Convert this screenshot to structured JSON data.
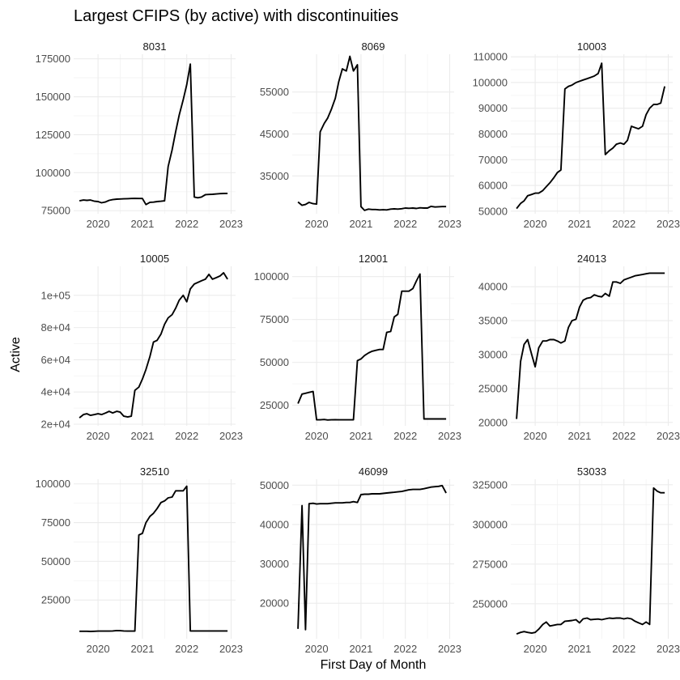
{
  "figure": {
    "title": "Largest CFIPS (by active) with discontinuities",
    "xlabel": "First Day of Month",
    "ylabel": "Active"
  },
  "chart_data": [
    {
      "type": "line",
      "panel": "8031",
      "xlim": [
        2019.45,
        2023.1
      ],
      "ylim": [
        73000,
        178000
      ],
      "yticks": [
        75000,
        100000,
        125000,
        150000,
        175000
      ],
      "ytick_labels": [
        "75000",
        "100000",
        "125000",
        "150000",
        "175000"
      ],
      "xticks": [
        2020,
        2021,
        2022,
        2023
      ],
      "xtick_labels": [
        "2020",
        "2021",
        "2022",
        "2023"
      ],
      "x": [
        2019.58,
        2019.67,
        2019.75,
        2019.83,
        2019.92,
        2020.0,
        2020.08,
        2020.17,
        2020.25,
        2020.33,
        2020.42,
        2020.5,
        2020.58,
        2020.67,
        2020.75,
        2020.83,
        2020.92,
        2021.0,
        2021.08,
        2021.17,
        2021.25,
        2021.33,
        2021.42,
        2021.5,
        2021.58,
        2021.67,
        2021.75,
        2021.83,
        2021.92,
        2022.0,
        2022.08,
        2022.17,
        2022.25,
        2022.33,
        2022.42,
        2022.5,
        2022.58,
        2022.67,
        2022.75,
        2022.83,
        2022.92
      ],
      "y": [
        81500,
        82000,
        81800,
        82000,
        81200,
        81000,
        80200,
        80800,
        81800,
        82300,
        82600,
        82700,
        82800,
        82900,
        83000,
        83100,
        83000,
        83000,
        79000,
        80500,
        80600,
        81000,
        81200,
        81500,
        104000,
        115000,
        127000,
        138000,
        148000,
        158000,
        171500,
        84000,
        83500,
        84000,
        85500,
        85700,
        85800,
        86000,
        86200,
        86300,
        86400
      ]
    },
    {
      "type": "line",
      "panel": "8069",
      "xlim": [
        2019.45,
        2023.1
      ],
      "ylim": [
        26000,
        64000
      ],
      "yticks": [
        35000,
        45000,
        55000
      ],
      "ytick_labels": [
        "35000",
        "45000",
        "55000"
      ],
      "xticks": [
        2020,
        2021,
        2022,
        2023
      ],
      "xtick_labels": [
        "2020",
        "2021",
        "2022",
        "2023"
      ],
      "x": [
        2019.58,
        2019.67,
        2019.75,
        2019.83,
        2019.92,
        2020.0,
        2020.08,
        2020.17,
        2020.25,
        2020.33,
        2020.42,
        2020.5,
        2020.58,
        2020.67,
        2020.75,
        2020.83,
        2020.92,
        2021.0,
        2021.08,
        2021.17,
        2021.25,
        2021.33,
        2021.42,
        2021.5,
        2021.58,
        2021.67,
        2021.75,
        2021.83,
        2021.92,
        2022.0,
        2022.08,
        2022.17,
        2022.25,
        2022.33,
        2022.42,
        2022.5,
        2022.58,
        2022.67,
        2022.75,
        2022.83,
        2022.92
      ],
      "y": [
        28800,
        28000,
        28200,
        28700,
        28400,
        28300,
        45500,
        47500,
        48800,
        50800,
        53500,
        57500,
        60500,
        60000,
        63500,
        60000,
        61500,
        27700,
        26800,
        27100,
        27000,
        27000,
        26900,
        26950,
        26900,
        27100,
        27150,
        27100,
        27200,
        27350,
        27300,
        27350,
        27250,
        27400,
        27350,
        27350,
        27750,
        27600,
        27650,
        27700,
        27700
      ]
    },
    {
      "type": "line",
      "panel": "10003",
      "xlim": [
        2019.45,
        2023.1
      ],
      "ylim": [
        49000,
        111000
      ],
      "yticks": [
        50000,
        60000,
        70000,
        80000,
        90000,
        100000,
        110000
      ],
      "ytick_labels": [
        "50000",
        "60000",
        "70000",
        "80000",
        "90000",
        "100000",
        "110000"
      ],
      "xticks": [
        2020,
        2021,
        2022,
        2023
      ],
      "xtick_labels": [
        "2020",
        "2021",
        "2022",
        "2023"
      ],
      "x": [
        2019.58,
        2019.67,
        2019.75,
        2019.83,
        2019.92,
        2020.0,
        2020.08,
        2020.17,
        2020.25,
        2020.33,
        2020.42,
        2020.5,
        2020.58,
        2020.67,
        2020.75,
        2020.83,
        2020.92,
        2021.0,
        2021.08,
        2021.17,
        2021.25,
        2021.33,
        2021.42,
        2021.5,
        2021.58,
        2021.67,
        2021.75,
        2021.83,
        2021.92,
        2022.0,
        2022.08,
        2022.17,
        2022.25,
        2022.33,
        2022.42,
        2022.5,
        2022.58,
        2022.67,
        2022.75,
        2022.83,
        2022.92
      ],
      "y": [
        51000,
        53000,
        54000,
        56000,
        56500,
        57000,
        57000,
        58000,
        59500,
        61000,
        63000,
        65000,
        66000,
        97500,
        98500,
        99000,
        100000,
        100500,
        101000,
        101500,
        102000,
        102500,
        103500,
        107500,
        72000,
        73500,
        74500,
        76000,
        76500,
        76000,
        77500,
        83000,
        82500,
        82000,
        83000,
        87500,
        90000,
        91500,
        91500,
        92000,
        98500
      ]
    },
    {
      "type": "line",
      "panel": "10005",
      "xlim": [
        2019.45,
        2023.1
      ],
      "ylim": [
        19000,
        118000
      ],
      "yticks": [
        20000,
        40000,
        60000,
        80000,
        100000
      ],
      "ytick_labels": [
        "2e+04",
        "4e+04",
        "6e+04",
        "8e+04",
        "1e+05"
      ],
      "xticks": [
        2020,
        2021,
        2022,
        2023
      ],
      "xtick_labels": [
        "2020",
        "2021",
        "2022",
        "2023"
      ],
      "x": [
        2019.58,
        2019.67,
        2019.75,
        2019.83,
        2019.92,
        2020.0,
        2020.08,
        2020.17,
        2020.25,
        2020.33,
        2020.42,
        2020.5,
        2020.58,
        2020.67,
        2020.75,
        2020.83,
        2020.92,
        2021.0,
        2021.08,
        2021.17,
        2021.25,
        2021.33,
        2021.42,
        2021.5,
        2021.58,
        2021.67,
        2021.75,
        2021.83,
        2021.92,
        2022.0,
        2022.08,
        2022.17,
        2022.25,
        2022.33,
        2022.42,
        2022.5,
        2022.58,
        2022.67,
        2022.75,
        2022.83,
        2022.92
      ],
      "y": [
        24000,
        26000,
        26500,
        25500,
        26000,
        26500,
        26000,
        27000,
        28000,
        27000,
        28000,
        27500,
        25000,
        24500,
        25000,
        41000,
        43000,
        48000,
        54000,
        62000,
        71000,
        72000,
        76000,
        82000,
        86000,
        88000,
        92000,
        97000,
        100000,
        96000,
        104000,
        107000,
        108000,
        109000,
        110000,
        113000,
        110000,
        111000,
        112000,
        114000,
        110000
      ]
    },
    {
      "type": "line",
      "panel": "12001",
      "xlim": [
        2019.45,
        2023.1
      ],
      "ylim": [
        13000,
        106000
      ],
      "yticks": [
        25000,
        50000,
        75000,
        100000
      ],
      "ytick_labels": [
        "25000",
        "50000",
        "75000",
        "100000"
      ],
      "xticks": [
        2020,
        2021,
        2022,
        2023
      ],
      "xtick_labels": [
        "2020",
        "2021",
        "2022",
        "2023"
      ],
      "x": [
        2019.58,
        2019.67,
        2019.75,
        2019.83,
        2019.92,
        2020.0,
        2020.08,
        2020.17,
        2020.25,
        2020.33,
        2020.42,
        2020.5,
        2020.58,
        2020.67,
        2020.75,
        2020.83,
        2020.92,
        2021.0,
        2021.08,
        2021.17,
        2021.25,
        2021.33,
        2021.42,
        2021.5,
        2021.58,
        2021.67,
        2021.75,
        2021.83,
        2021.92,
        2022.0,
        2022.08,
        2022.17,
        2022.25,
        2022.33,
        2022.42,
        2022.5,
        2022.58,
        2022.67,
        2022.75,
        2022.83,
        2022.92
      ],
      "y": [
        26000,
        31500,
        32000,
        32500,
        33000,
        16500,
        16500,
        16700,
        16400,
        16500,
        16600,
        16500,
        16500,
        16500,
        16500,
        16500,
        51000,
        52000,
        54000,
        55500,
        56500,
        57000,
        57500,
        57500,
        67500,
        68000,
        76500,
        78000,
        91500,
        91500,
        91500,
        93000,
        97500,
        101500,
        17000,
        17000,
        17000,
        17000,
        17000,
        17000,
        17000
      ]
    },
    {
      "type": "line",
      "panel": "24013",
      "xlim": [
        2019.45,
        2023.1
      ],
      "ylim": [
        19500,
        43000
      ],
      "yticks": [
        20000,
        25000,
        30000,
        35000,
        40000
      ],
      "ytick_labels": [
        "20000",
        "25000",
        "30000",
        "35000",
        "40000"
      ],
      "xticks": [
        2020,
        2021,
        2022,
        2023
      ],
      "xtick_labels": [
        "2020",
        "2021",
        "2022",
        "2023"
      ],
      "x": [
        2019.58,
        2019.67,
        2019.75,
        2019.83,
        2019.92,
        2020.0,
        2020.08,
        2020.17,
        2020.25,
        2020.33,
        2020.42,
        2020.5,
        2020.58,
        2020.67,
        2020.75,
        2020.83,
        2020.92,
        2021.0,
        2021.08,
        2021.17,
        2021.25,
        2021.33,
        2021.42,
        2021.5,
        2021.58,
        2021.67,
        2021.75,
        2021.83,
        2021.92,
        2022.0,
        2022.08,
        2022.17,
        2022.25,
        2022.33,
        2022.42,
        2022.5,
        2022.58,
        2022.67,
        2022.75,
        2022.83,
        2022.92
      ],
      "y": [
        20500,
        29000,
        31500,
        32200,
        30000,
        28200,
        31000,
        32000,
        32000,
        32200,
        32200,
        32000,
        31700,
        32000,
        34000,
        35000,
        35200,
        37000,
        38000,
        38300,
        38400,
        38800,
        38600,
        38500,
        39000,
        38600,
        40700,
        40700,
        40500,
        41000,
        41200,
        41400,
        41600,
        41700,
        41800,
        41900,
        42000,
        42000,
        42000,
        42000,
        42000
      ]
    },
    {
      "type": "line",
      "panel": "32510",
      "xlim": [
        2019.45,
        2023.1
      ],
      "ylim": [
        0,
        103000
      ],
      "yticks": [
        25000,
        50000,
        75000,
        100000
      ],
      "ytick_labels": [
        "25000",
        "50000",
        "75000",
        "100000"
      ],
      "xticks": [
        2020,
        2021,
        2022,
        2023
      ],
      "xtick_labels": [
        "2020",
        "2021",
        "2022",
        "2023"
      ],
      "x": [
        2019.58,
        2019.67,
        2019.75,
        2019.83,
        2019.92,
        2020.0,
        2020.08,
        2020.17,
        2020.25,
        2020.33,
        2020.42,
        2020.5,
        2020.58,
        2020.67,
        2020.75,
        2020.83,
        2020.92,
        2021.0,
        2021.08,
        2021.17,
        2021.25,
        2021.33,
        2021.42,
        2021.5,
        2021.58,
        2021.67,
        2021.75,
        2021.83,
        2021.92,
        2022.0,
        2022.08,
        2022.17,
        2022.25,
        2022.33,
        2022.42,
        2022.5,
        2022.58,
        2022.67,
        2022.75,
        2022.83,
        2022.92
      ],
      "y": [
        4800,
        4800,
        4800,
        4700,
        4800,
        4900,
        4900,
        4900,
        4900,
        5000,
        5300,
        5200,
        5000,
        4900,
        4900,
        4900,
        67000,
        68000,
        75000,
        79000,
        81000,
        84000,
        88000,
        89000,
        91000,
        91500,
        95500,
        95500,
        95500,
        98500,
        5000,
        5000,
        5000,
        5000,
        5000,
        5000,
        5000,
        5000,
        5000,
        5000,
        5000
      ]
    },
    {
      "type": "line",
      "panel": "46099",
      "xlim": [
        2019.45,
        2023.1
      ],
      "ylim": [
        11000,
        51500
      ],
      "yticks": [
        20000,
        30000,
        40000,
        50000
      ],
      "ytick_labels": [
        "20000",
        "30000",
        "40000",
        "50000"
      ],
      "xticks": [
        2020,
        2021,
        2022,
        2023
      ],
      "xtick_labels": [
        "2020",
        "2021",
        "2022",
        "2023"
      ],
      "x": [
        2019.58,
        2019.67,
        2019.75,
        2019.83,
        2019.92,
        2020.0,
        2020.08,
        2020.17,
        2020.25,
        2020.33,
        2020.42,
        2020.5,
        2020.58,
        2020.67,
        2020.75,
        2020.83,
        2020.92,
        2021.0,
        2021.08,
        2021.17,
        2021.25,
        2021.33,
        2021.42,
        2021.5,
        2021.58,
        2021.67,
        2021.75,
        2021.83,
        2021.92,
        2022.0,
        2022.08,
        2022.17,
        2022.25,
        2022.33,
        2022.42,
        2022.5,
        2022.58,
        2022.67,
        2022.75,
        2022.83,
        2022.92
      ],
      "y": [
        13500,
        44800,
        13300,
        45300,
        45400,
        45200,
        45300,
        45300,
        45300,
        45400,
        45500,
        45500,
        45500,
        45600,
        45600,
        45800,
        45600,
        47600,
        47700,
        47700,
        47800,
        47800,
        47800,
        47900,
        48000,
        48100,
        48200,
        48300,
        48400,
        48600,
        48800,
        48900,
        48900,
        48900,
        49100,
        49300,
        49500,
        49600,
        49700,
        49900,
        48000
      ]
    },
    {
      "type": "line",
      "panel": "53033",
      "xlim": [
        2019.45,
        2023.1
      ],
      "ylim": [
        228000,
        328500
      ],
      "yticks": [
        250000,
        275000,
        300000,
        325000
      ],
      "ytick_labels": [
        "250000",
        "275000",
        "300000",
        "325000"
      ],
      "xticks": [
        2020,
        2021,
        2022,
        2023
      ],
      "xtick_labels": [
        "2020",
        "2021",
        "2022",
        "2023"
      ],
      "x": [
        2019.58,
        2019.67,
        2019.75,
        2019.83,
        2019.92,
        2020.0,
        2020.08,
        2020.17,
        2020.25,
        2020.33,
        2020.42,
        2020.5,
        2020.58,
        2020.67,
        2020.75,
        2020.83,
        2020.92,
        2021.0,
        2021.08,
        2021.17,
        2021.25,
        2021.33,
        2021.42,
        2021.5,
        2021.58,
        2021.67,
        2021.75,
        2021.83,
        2021.92,
        2022.0,
        2022.08,
        2022.17,
        2022.25,
        2022.33,
        2022.42,
        2022.5,
        2022.58,
        2022.67,
        2022.75,
        2022.83,
        2022.92
      ],
      "y": [
        231000,
        232000,
        232500,
        232000,
        231500,
        232000,
        234000,
        237000,
        238500,
        236000,
        236500,
        237000,
        237000,
        239000,
        239200,
        239500,
        240000,
        238000,
        240500,
        241000,
        240000,
        240200,
        240400,
        240000,
        240500,
        241000,
        240800,
        241000,
        241000,
        240500,
        241000,
        240500,
        239000,
        238000,
        237000,
        238500,
        237000,
        323000,
        321000,
        320000,
        320000
      ]
    }
  ]
}
